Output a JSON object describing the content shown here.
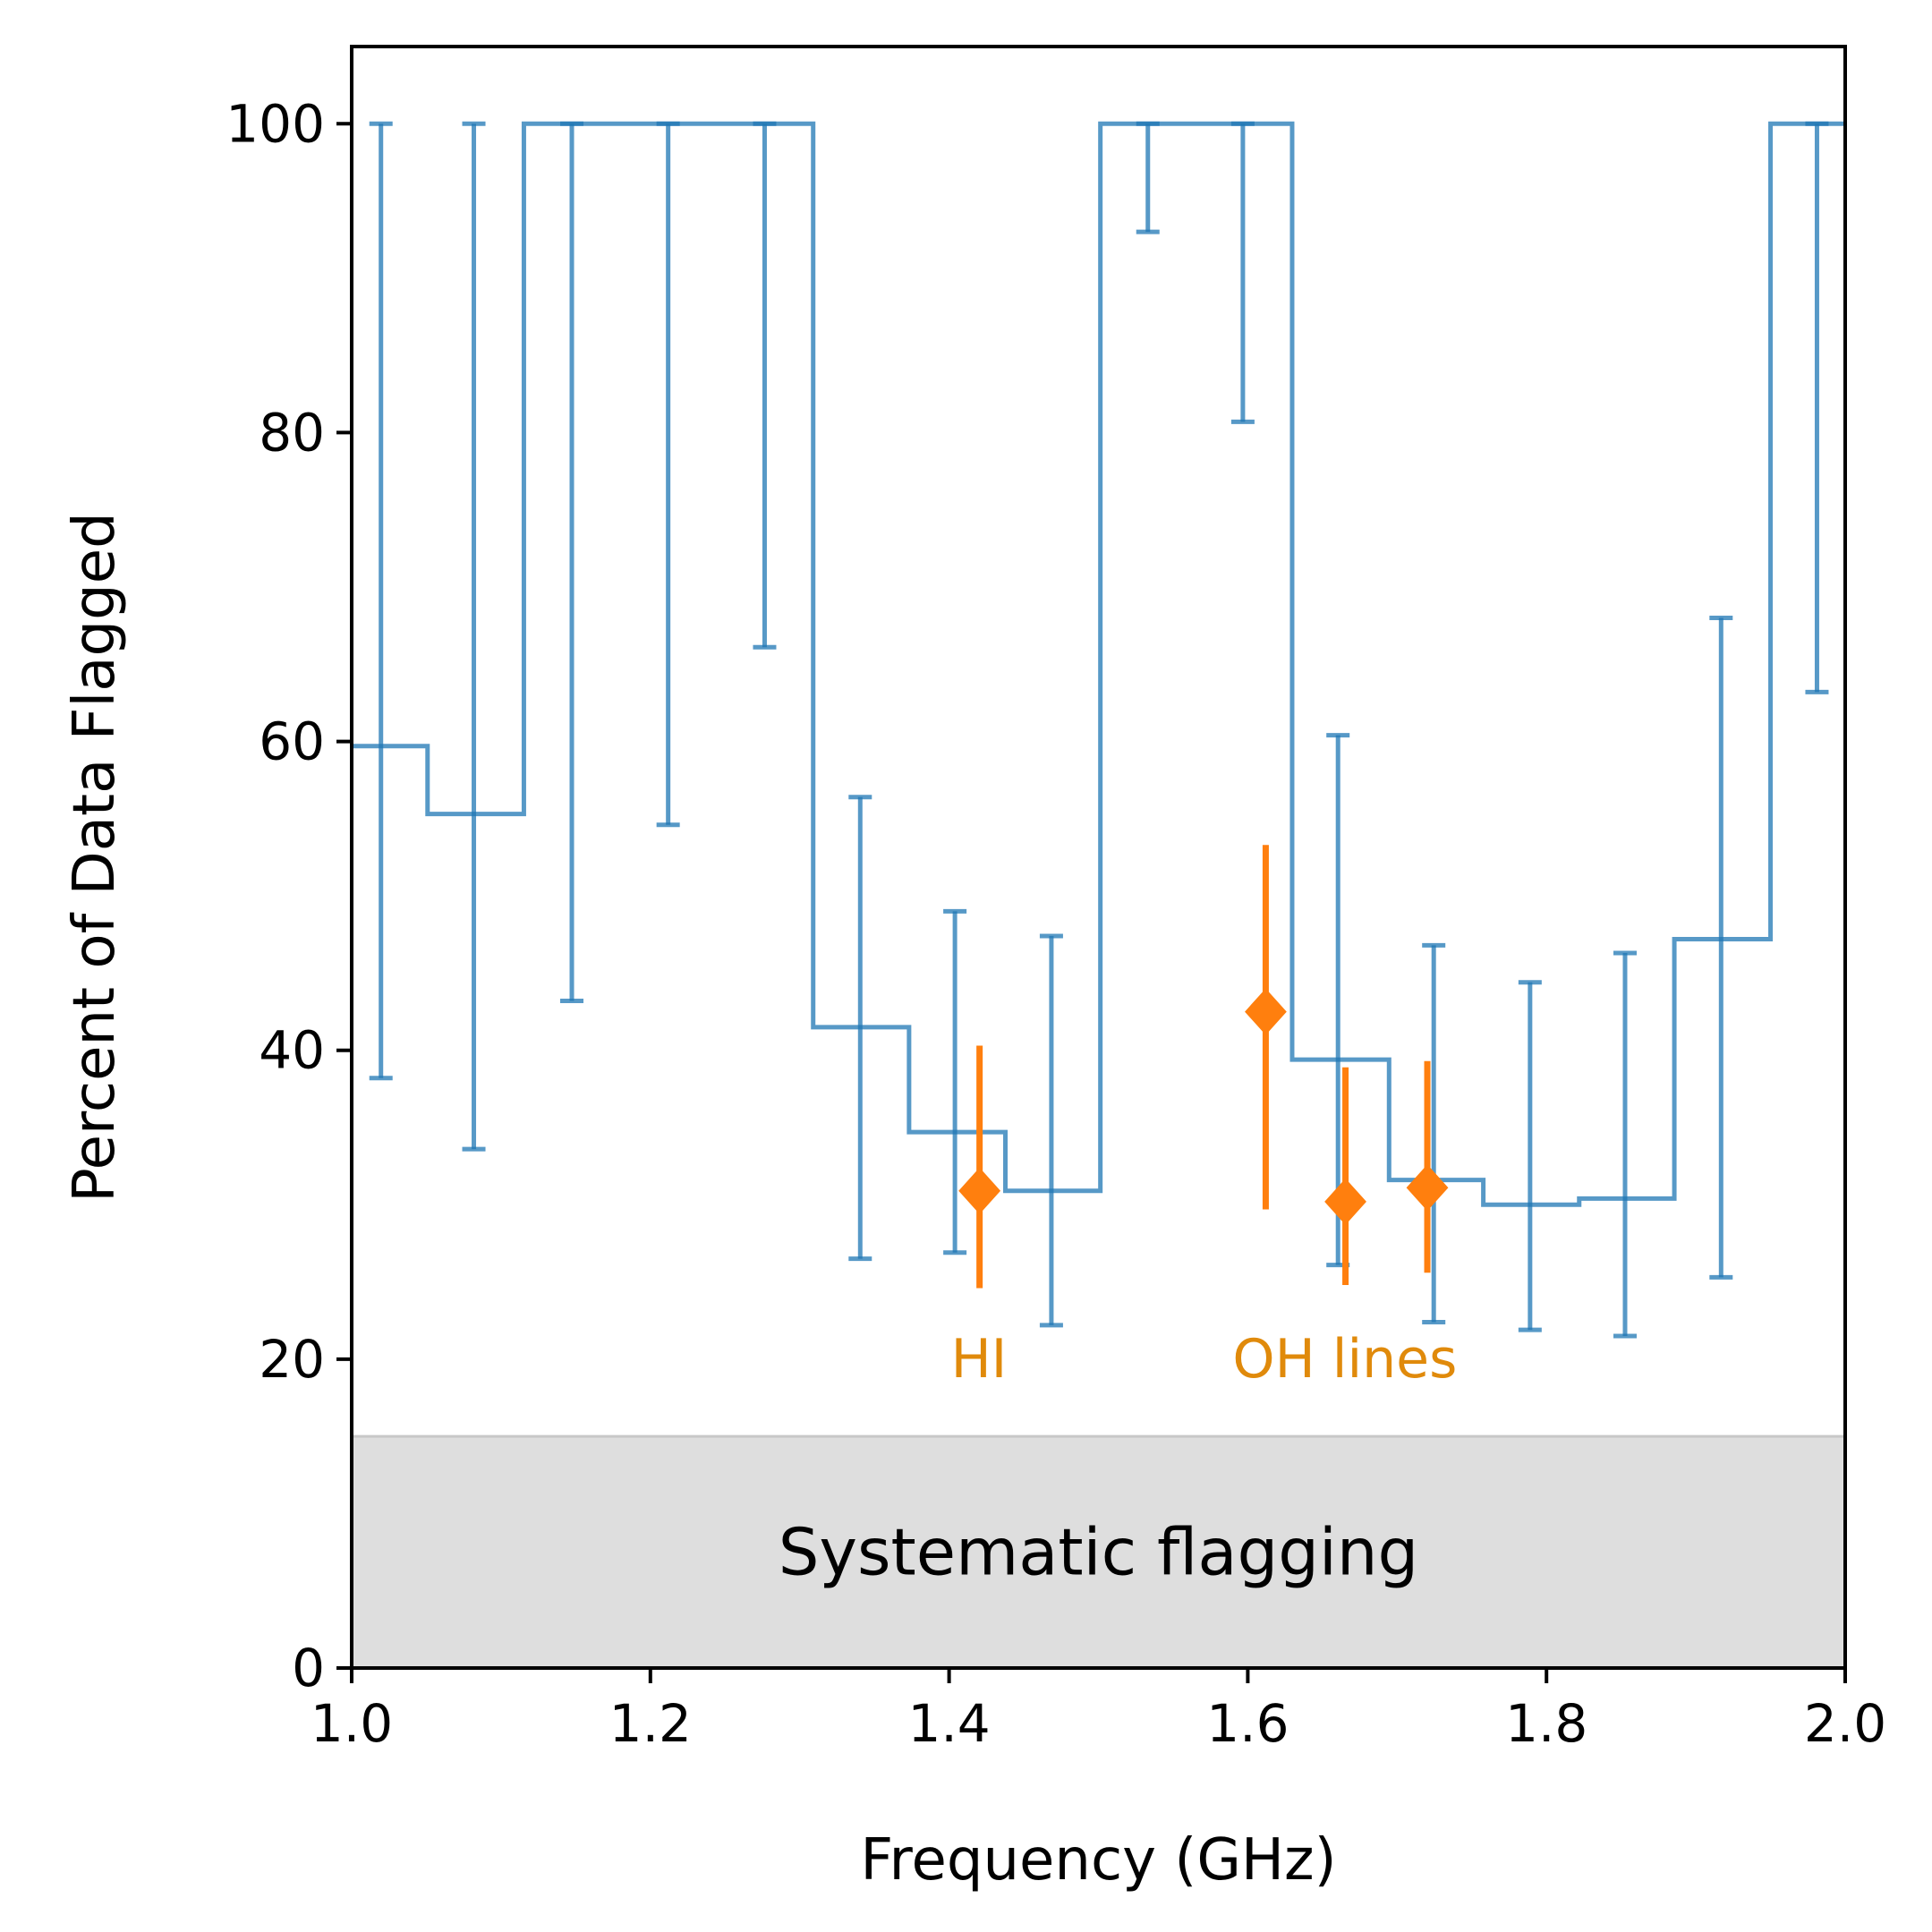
{
  "chart_data": {
    "type": "step-errorbar",
    "xlabel": "Frequency (GHz)",
    "ylabel": "Percent of Data Flagged",
    "xlim": [
      1.0,
      2.0
    ],
    "ylim": [
      0,
      105
    ],
    "xticks": [
      1.0,
      1.2,
      1.4,
      1.6,
      1.8,
      2.0
    ],
    "xtick_labels": [
      "1.0",
      "1.2",
      "1.4",
      "1.6",
      "1.8",
      "2.0"
    ],
    "yticks": [
      0,
      20,
      40,
      60,
      80,
      100
    ],
    "ytick_labels": [
      "0",
      "20",
      "40",
      "60",
      "80",
      "100"
    ],
    "grid": false,
    "colors": {
      "series": "#1f77b4",
      "lines": "#ff7f0e",
      "annotation": "#e08a0b",
      "band": "#dedede",
      "band_edge": "#c8c8c8"
    },
    "band": {
      "y_from": 0,
      "y_to": 15,
      "label": "Systematic flagging"
    },
    "series": [
      {
        "type": "step",
        "bins": [
          {
            "x0": 1.0,
            "x1": 1.0508,
            "x": 1.0196,
            "y": 59.7,
            "lo": 38.2,
            "hi": 100
          },
          {
            "x0": 1.0508,
            "x1": 1.1153,
            "x": 1.0818,
            "y": 55.3,
            "lo": 33.6,
            "hi": 100
          },
          {
            "x0": 1.1153,
            "x1": 1.1806,
            "x": 1.1474,
            "y": 100,
            "lo": 43.2,
            "hi": 100
          },
          {
            "x0": 1.1806,
            "x1": 1.2445,
            "x": 1.2119,
            "y": 100,
            "lo": 54.6,
            "hi": 100
          },
          {
            "x0": 1.2445,
            "x1": 1.309,
            "x": 1.2765,
            "y": 100,
            "lo": 66.1,
            "hi": 100
          },
          {
            "x0": 1.309,
            "x1": 1.3732,
            "x": 1.3405,
            "y": 41.5,
            "lo": 26.5,
            "hi": 56.4
          },
          {
            "x0": 1.3732,
            "x1": 1.4377,
            "x": 1.4039,
            "y": 34.7,
            "lo": 26.9,
            "hi": 49.0
          },
          {
            "x0": 1.4377,
            "x1": 1.5013,
            "x": 1.4685,
            "y": 30.9,
            "lo": 22.2,
            "hi": 47.4
          },
          {
            "x0": 1.5013,
            "x1": 1.5652,
            "x": 1.5331,
            "y": 100,
            "lo": 93.0,
            "hi": 100
          },
          {
            "x0": 1.5652,
            "x1": 1.6297,
            "x": 1.5967,
            "y": 100,
            "lo": 80.7,
            "hi": 100
          },
          {
            "x0": 1.6297,
            "x1": 1.6946,
            "x": 1.6604,
            "y": 39.4,
            "lo": 26.1,
            "hi": 60.4
          },
          {
            "x0": 1.6946,
            "x1": 1.7577,
            "x": 1.7245,
            "y": 31.6,
            "lo": 22.4,
            "hi": 46.8
          },
          {
            "x0": 1.7577,
            "x1": 1.8219,
            "x": 1.789,
            "y": 30.0,
            "lo": 21.9,
            "hi": 44.4
          },
          {
            "x0": 1.8219,
            "x1": 1.8856,
            "x": 1.8526,
            "y": 30.4,
            "lo": 21.5,
            "hi": 46.3
          },
          {
            "x0": 1.8856,
            "x1": 1.95,
            "x": 1.9169,
            "y": 47.2,
            "lo": 25.3,
            "hi": 68.0
          },
          {
            "x0": 1.95,
            "x1": 2.0,
            "x": 1.9811,
            "y": 100,
            "lo": 63.2,
            "hi": 100
          }
        ]
      },
      {
        "type": "scatter-errorbar",
        "marker": "diamond",
        "points": [
          {
            "x": 1.4204,
            "y": 30.9,
            "lo": 24.6,
            "hi": 40.3
          },
          {
            "x": 1.612,
            "y": 42.5,
            "lo": 29.7,
            "hi": 53.3
          },
          {
            "x": 1.6654,
            "y": 30.2,
            "lo": 24.8,
            "hi": 38.9
          },
          {
            "x": 1.7202,
            "y": 31.1,
            "lo": 25.6,
            "hi": 39.3
          }
        ]
      }
    ],
    "annotations": [
      {
        "text": "HI",
        "x": 1.42,
        "y": 20
      },
      {
        "text": "OH lines",
        "x": 1.665,
        "y": 20
      }
    ]
  }
}
